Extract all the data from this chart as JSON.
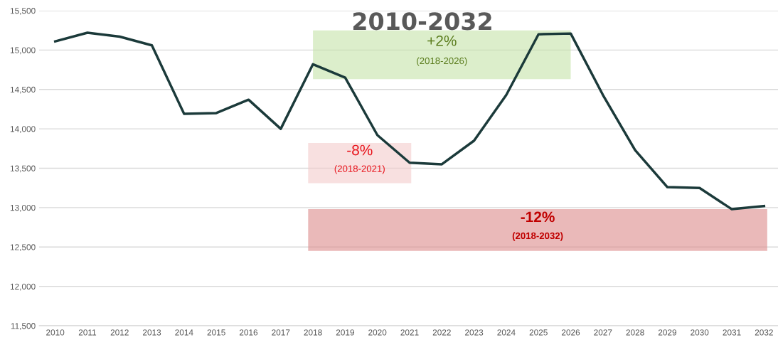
{
  "chart_data": {
    "type": "line",
    "title": "2010-2032",
    "categories": [
      "2010",
      "2011",
      "2012",
      "2013",
      "2014",
      "2015",
      "2016",
      "2017",
      "2018",
      "2019",
      "2020",
      "2021",
      "2022",
      "2023",
      "2024",
      "2025",
      "2026",
      "2027",
      "2028",
      "2029",
      "2030",
      "2031",
      "2032"
    ],
    "series": [
      {
        "color": "#1b3a3a",
        "values": [
          15110,
          15220,
          15170,
          15060,
          14190,
          14200,
          14370,
          14000,
          14820,
          14650,
          13920,
          13570,
          13550,
          13850,
          14430,
          15200,
          15210,
          14430,
          13730,
          13260,
          13250,
          12980,
          13020
        ]
      }
    ],
    "ylim": [
      11500,
      15500
    ],
    "yticks": [
      {
        "value": 11500,
        "label": "11,500"
      },
      {
        "value": 12000,
        "label": "12,000"
      },
      {
        "value": 12500,
        "label": "12,500"
      },
      {
        "value": 13000,
        "label": "13,000"
      },
      {
        "value": 13500,
        "label": "13,500"
      },
      {
        "value": 14000,
        "label": "14,000"
      },
      {
        "value": 14500,
        "label": "14,500"
      },
      {
        "value": 15000,
        "label": "15,000"
      },
      {
        "value": 15500,
        "label": "15,500"
      }
    ],
    "grid": "y",
    "legend": false,
    "marker": "none",
    "line_style": "solid",
    "bands": [
      {
        "axis": "y",
        "from": 14630,
        "to": 15250,
        "label": "+2%\n(2018-2026)",
        "color": "#c5e3a8"
      },
      {
        "axis": "y",
        "from": 13310,
        "to": 13820,
        "label": "-8%\n(2018-2021)",
        "color": "#f4cccc"
      },
      {
        "axis": "y",
        "from": 12450,
        "to": 12980,
        "label": "-12%\n(2018-2032)",
        "color": "#dc8a8a"
      }
    ]
  }
}
